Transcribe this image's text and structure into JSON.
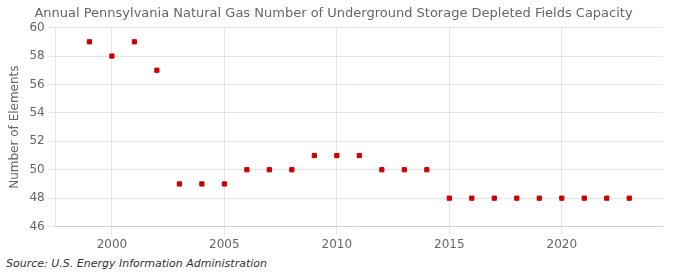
{
  "chart_data": {
    "type": "scatter",
    "title": "Annual Pennsylvania Natural Gas Number of Underground Storage Depleted Fields Capacity",
    "y_label": "Number of Elements",
    "source": "Source: U.S. Energy Information Administration",
    "x": [
      1999,
      2000,
      2001,
      2002,
      2003,
      2004,
      2005,
      2006,
      2007,
      2008,
      2009,
      2010,
      2011,
      2012,
      2013,
      2014,
      2015,
      2016,
      2017,
      2018,
      2019,
      2020,
      2021,
      2022,
      2023
    ],
    "values": [
      59,
      58,
      59,
      57,
      49,
      49,
      49,
      50,
      50,
      50,
      51,
      51,
      51,
      50,
      50,
      50,
      48,
      48,
      48,
      48,
      48,
      48,
      48,
      48,
      48
    ],
    "color": "#cc0000",
    "marker": "square",
    "xlim": [
      1997.5,
      2024.5
    ],
    "xticks": [
      2000,
      2005,
      2010,
      2015,
      2020
    ],
    "ylim": [
      46,
      60
    ],
    "yticks": [
      46,
      48,
      50,
      52,
      54,
      56,
      58,
      60
    ],
    "grid": true
  }
}
